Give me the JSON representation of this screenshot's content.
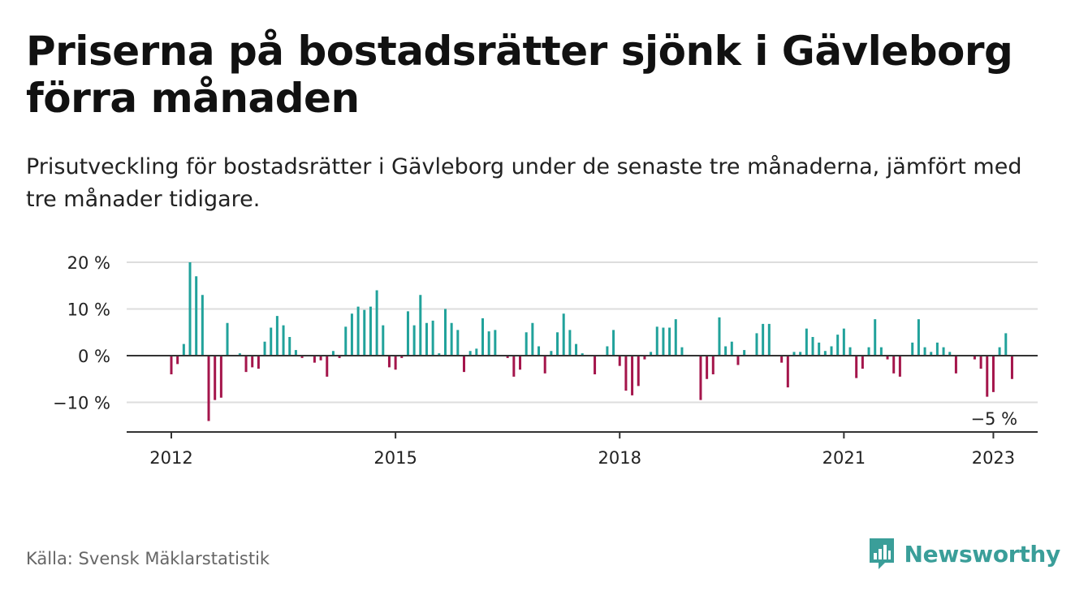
{
  "header": {
    "title": "Priserna på bostadsrätter sjönk i Gävleborg förra månaden",
    "subtitle": "Prisutveckling för bostadsrätter i Gävleborg under de senaste tre månaderna, jämfört med tre månader tidigare."
  },
  "footer": {
    "source": "Källa: Svensk Mäklarstatistik",
    "brand": "Newsworthy"
  },
  "colors": {
    "positive": "#21a29b",
    "negative": "#a4154b",
    "grid": "#dddddd",
    "zero_line": "#333333",
    "brand": "#3a9e99"
  },
  "chart_data": {
    "type": "bar",
    "title": "Priserna på bostadsrätter sjönk i Gävleborg förra månaden",
    "subtitle": "Prisutveckling för bostadsrätter i Gävleborg under de senaste tre månaderna, jämfört med tre månader tidigare.",
    "unit": "%",
    "x_start": "2012-01",
    "x_end": "2023-01",
    "ylim": [
      -16,
      20
    ],
    "y_ticks": [
      {
        "value": 20,
        "label": "20 %"
      },
      {
        "value": 10,
        "label": "10 %"
      },
      {
        "value": 0,
        "label": "0 %"
      },
      {
        "value": -10,
        "label": "−10 %"
      }
    ],
    "x_ticks": [
      {
        "date": "2012-01",
        "label": "2012"
      },
      {
        "date": "2015-01",
        "label": "2015"
      },
      {
        "date": "2018-01",
        "label": "2018"
      },
      {
        "date": "2021-01",
        "label": "2021"
      },
      {
        "date": "2023-01",
        "label": "2023"
      }
    ],
    "annotation": {
      "date": "2023-01",
      "value": -5,
      "label": "−5 %"
    },
    "grid": true,
    "series": [
      {
        "values": [
          -4,
          -1.8,
          2.5,
          20,
          17,
          13,
          -14,
          -9.5,
          -9,
          7,
          0,
          0.5,
          -3.5,
          -2.5,
          -2.8,
          3,
          6,
          8.5,
          6.5,
          4,
          1.2,
          -0.5,
          0,
          -1.5,
          -1,
          -4.5,
          1,
          -0.5,
          6.2,
          9,
          10.5,
          9.8,
          10.5,
          14,
          6.5,
          -2.5,
          -3,
          -0.5,
          9.5,
          6.5,
          13,
          7,
          7.5,
          0.5,
          10,
          7,
          5.5,
          -3.5,
          1,
          1.5,
          8,
          5.2,
          5.5,
          0,
          -0.5,
          -4.5,
          -3,
          5,
          7,
          2,
          -3.8,
          1,
          5,
          9,
          5.5,
          2.5,
          0.5,
          0,
          -4,
          0,
          2,
          5.5,
          -2.2,
          -7.5,
          -8.5,
          -6.5,
          -0.8,
          0.8,
          6.2,
          6,
          6,
          7.8,
          1.8,
          0,
          0,
          -9.5,
          -5,
          -4,
          8.2,
          2,
          3,
          -2,
          1.2,
          0,
          4.8,
          6.8,
          6.8,
          0,
          -1.5,
          -6.8,
          0.8,
          0.8,
          5.8,
          4,
          2.8,
          1,
          2,
          4.5,
          5.8,
          1.8,
          -4.8,
          -2.8,
          1.8,
          7.8,
          1.8,
          -0.8,
          -3.8,
          -4.5,
          0,
          2.8,
          7.8,
          1.8,
          0.8,
          2.8,
          1.8,
          0.8,
          -3.8,
          0,
          0,
          -0.8,
          -2.8,
          -8.8,
          -7.8,
          1.8,
          4.8,
          -5
        ]
      }
    ]
  }
}
